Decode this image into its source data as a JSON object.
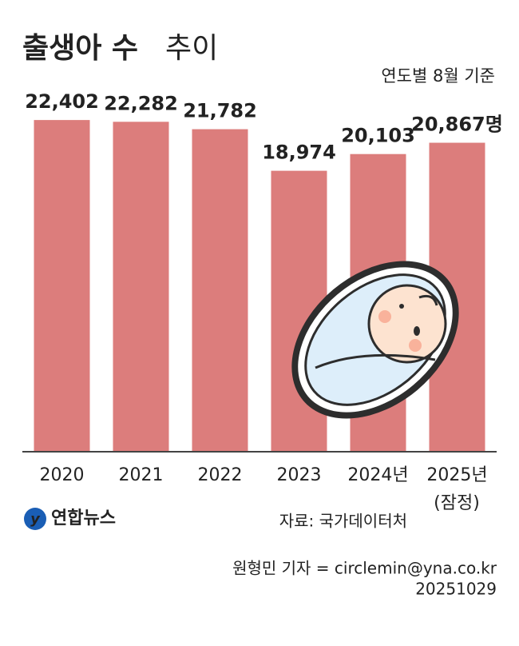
{
  "chart_data": {
    "type": "bar",
    "title": [
      "출생아 수",
      "추이"
    ],
    "subtitle": "연도별 8월 기준",
    "categories": [
      "2020",
      "2021",
      "2022",
      "2023",
      "2024년",
      "2025년"
    ],
    "provisional_label": "(잠정)",
    "values": [
      22402,
      22282,
      21782,
      18974,
      20103,
      20867
    ],
    "value_labels": [
      "22,402",
      "22,282",
      "21,782",
      "18,974",
      "20,103",
      "20,867명"
    ],
    "color": "#dc7d7c",
    "ylim": [
      0,
      25000
    ],
    "source": "자료: 국가데이터처",
    "logo": "연합뉴스",
    "credit": "원형민 기자 = circlemin@yna.co.kr",
    "date": "20251029"
  }
}
